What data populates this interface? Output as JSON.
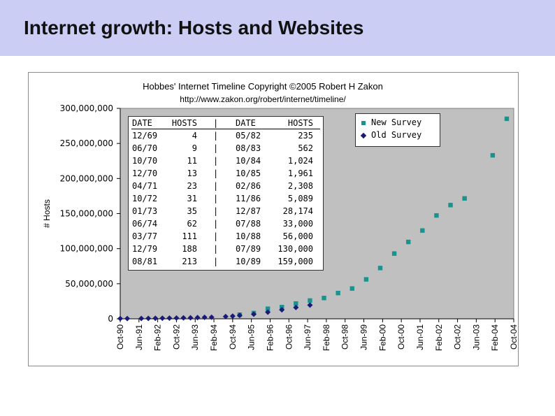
{
  "slide": {
    "title": "Internet growth: Hosts and Websites"
  },
  "chart_data": {
    "type": "scatter",
    "title": "Hobbes' Internet Timeline Copyright ©2005 Robert H Zakon",
    "subtitle": "http://www.zakon.org/robert/internet/timeline/",
    "ylabel": "# Hosts",
    "xlabel": "",
    "ylim": [
      0,
      300000000
    ],
    "y_ticks": [
      "0",
      "50,000,000",
      "100,000,000",
      "150,000,000",
      "200,000,000",
      "250,000,000",
      "300,000,000"
    ],
    "x_ticks": [
      "Oct-90",
      "Jun-91",
      "Feb-92",
      "Oct-92",
      "Jun-93",
      "Feb-94",
      "Oct-94",
      "Jun-95",
      "Feb-96",
      "Oct-96",
      "Jun-97",
      "Feb-98",
      "Oct-98",
      "Jun-99",
      "Feb-00",
      "Oct-00",
      "Jun-01",
      "Feb-02",
      "Oct-02",
      "Jun-03",
      "Feb-04",
      "Oct-04"
    ],
    "grid": false,
    "legend_position": "top-right",
    "background": "#c0c0c0",
    "series": [
      {
        "name": "New Survey",
        "marker": "square",
        "color": "#18938d",
        "points": [
          [
            "Jan-95",
            5846000
          ],
          [
            "Jul-95",
            8200000
          ],
          [
            "Jan-96",
            14352000
          ],
          [
            "Jul-96",
            16729000
          ],
          [
            "Jan-97",
            21819000
          ],
          [
            "Jul-97",
            26053000
          ],
          [
            "Jan-98",
            29670000
          ],
          [
            "Jul-98",
            36739000
          ],
          [
            "Jan-99",
            43230000
          ],
          [
            "Jul-99",
            56218000
          ],
          [
            "Jan-00",
            72398000
          ],
          [
            "Jul-00",
            93047000
          ],
          [
            "Jan-01",
            109574000
          ],
          [
            "Jul-01",
            125888000
          ],
          [
            "Jan-02",
            147345000
          ],
          [
            "Jul-02",
            162128000
          ],
          [
            "Jan-03",
            171638000
          ],
          [
            "Jan-04",
            233101000
          ],
          [
            "Jul-04",
            285139000
          ]
        ]
      },
      {
        "name": "Old Survey",
        "marker": "diamond",
        "color": "#1a1a78",
        "points": [
          [
            "Oct-90",
            313000
          ],
          [
            "Jan-91",
            376000
          ],
          [
            "Jul-91",
            535000
          ],
          [
            "Oct-91",
            617000
          ],
          [
            "Jan-92",
            727000
          ],
          [
            "Apr-92",
            890000
          ],
          [
            "Jul-92",
            992000
          ],
          [
            "Oct-92",
            1136000
          ],
          [
            "Jan-93",
            1313000
          ],
          [
            "Apr-93",
            1486000
          ],
          [
            "Jul-93",
            1776000
          ],
          [
            "Oct-93",
            2056000
          ],
          [
            "Jan-94",
            2217000
          ],
          [
            "Jul-94",
            3212000
          ],
          [
            "Oct-94",
            3864000
          ],
          [
            "Jan-95",
            4852000
          ],
          [
            "Jul-95",
            6642000
          ],
          [
            "Jan-96",
            9472000
          ],
          [
            "Jul-96",
            12881000
          ],
          [
            "Jan-97",
            16146000
          ],
          [
            "Jul-97",
            19540000
          ]
        ]
      }
    ]
  },
  "table": {
    "headers": [
      "DATE",
      "HOSTS",
      "|",
      "DATE",
      "HOSTS"
    ],
    "rows": [
      [
        "12/69",
        "4",
        "|",
        "05/82",
        "235"
      ],
      [
        "06/70",
        "9",
        "|",
        "08/83",
        "562"
      ],
      [
        "10/70",
        "11",
        "|",
        "10/84",
        "1,024"
      ],
      [
        "12/70",
        "13",
        "|",
        "10/85",
        "1,961"
      ],
      [
        "04/71",
        "23",
        "|",
        "02/86",
        "2,308"
      ],
      [
        "10/72",
        "31",
        "|",
        "11/86",
        "5,089"
      ],
      [
        "01/73",
        "35",
        "|",
        "12/87",
        "28,174"
      ],
      [
        "06/74",
        "62",
        "|",
        "07/88",
        "33,000"
      ],
      [
        "03/77",
        "111",
        "|",
        "10/88",
        "56,000"
      ],
      [
        "12/79",
        "188",
        "|",
        "07/89",
        "130,000"
      ],
      [
        "08/81",
        "213",
        "|",
        "10/89",
        "159,000"
      ]
    ]
  }
}
